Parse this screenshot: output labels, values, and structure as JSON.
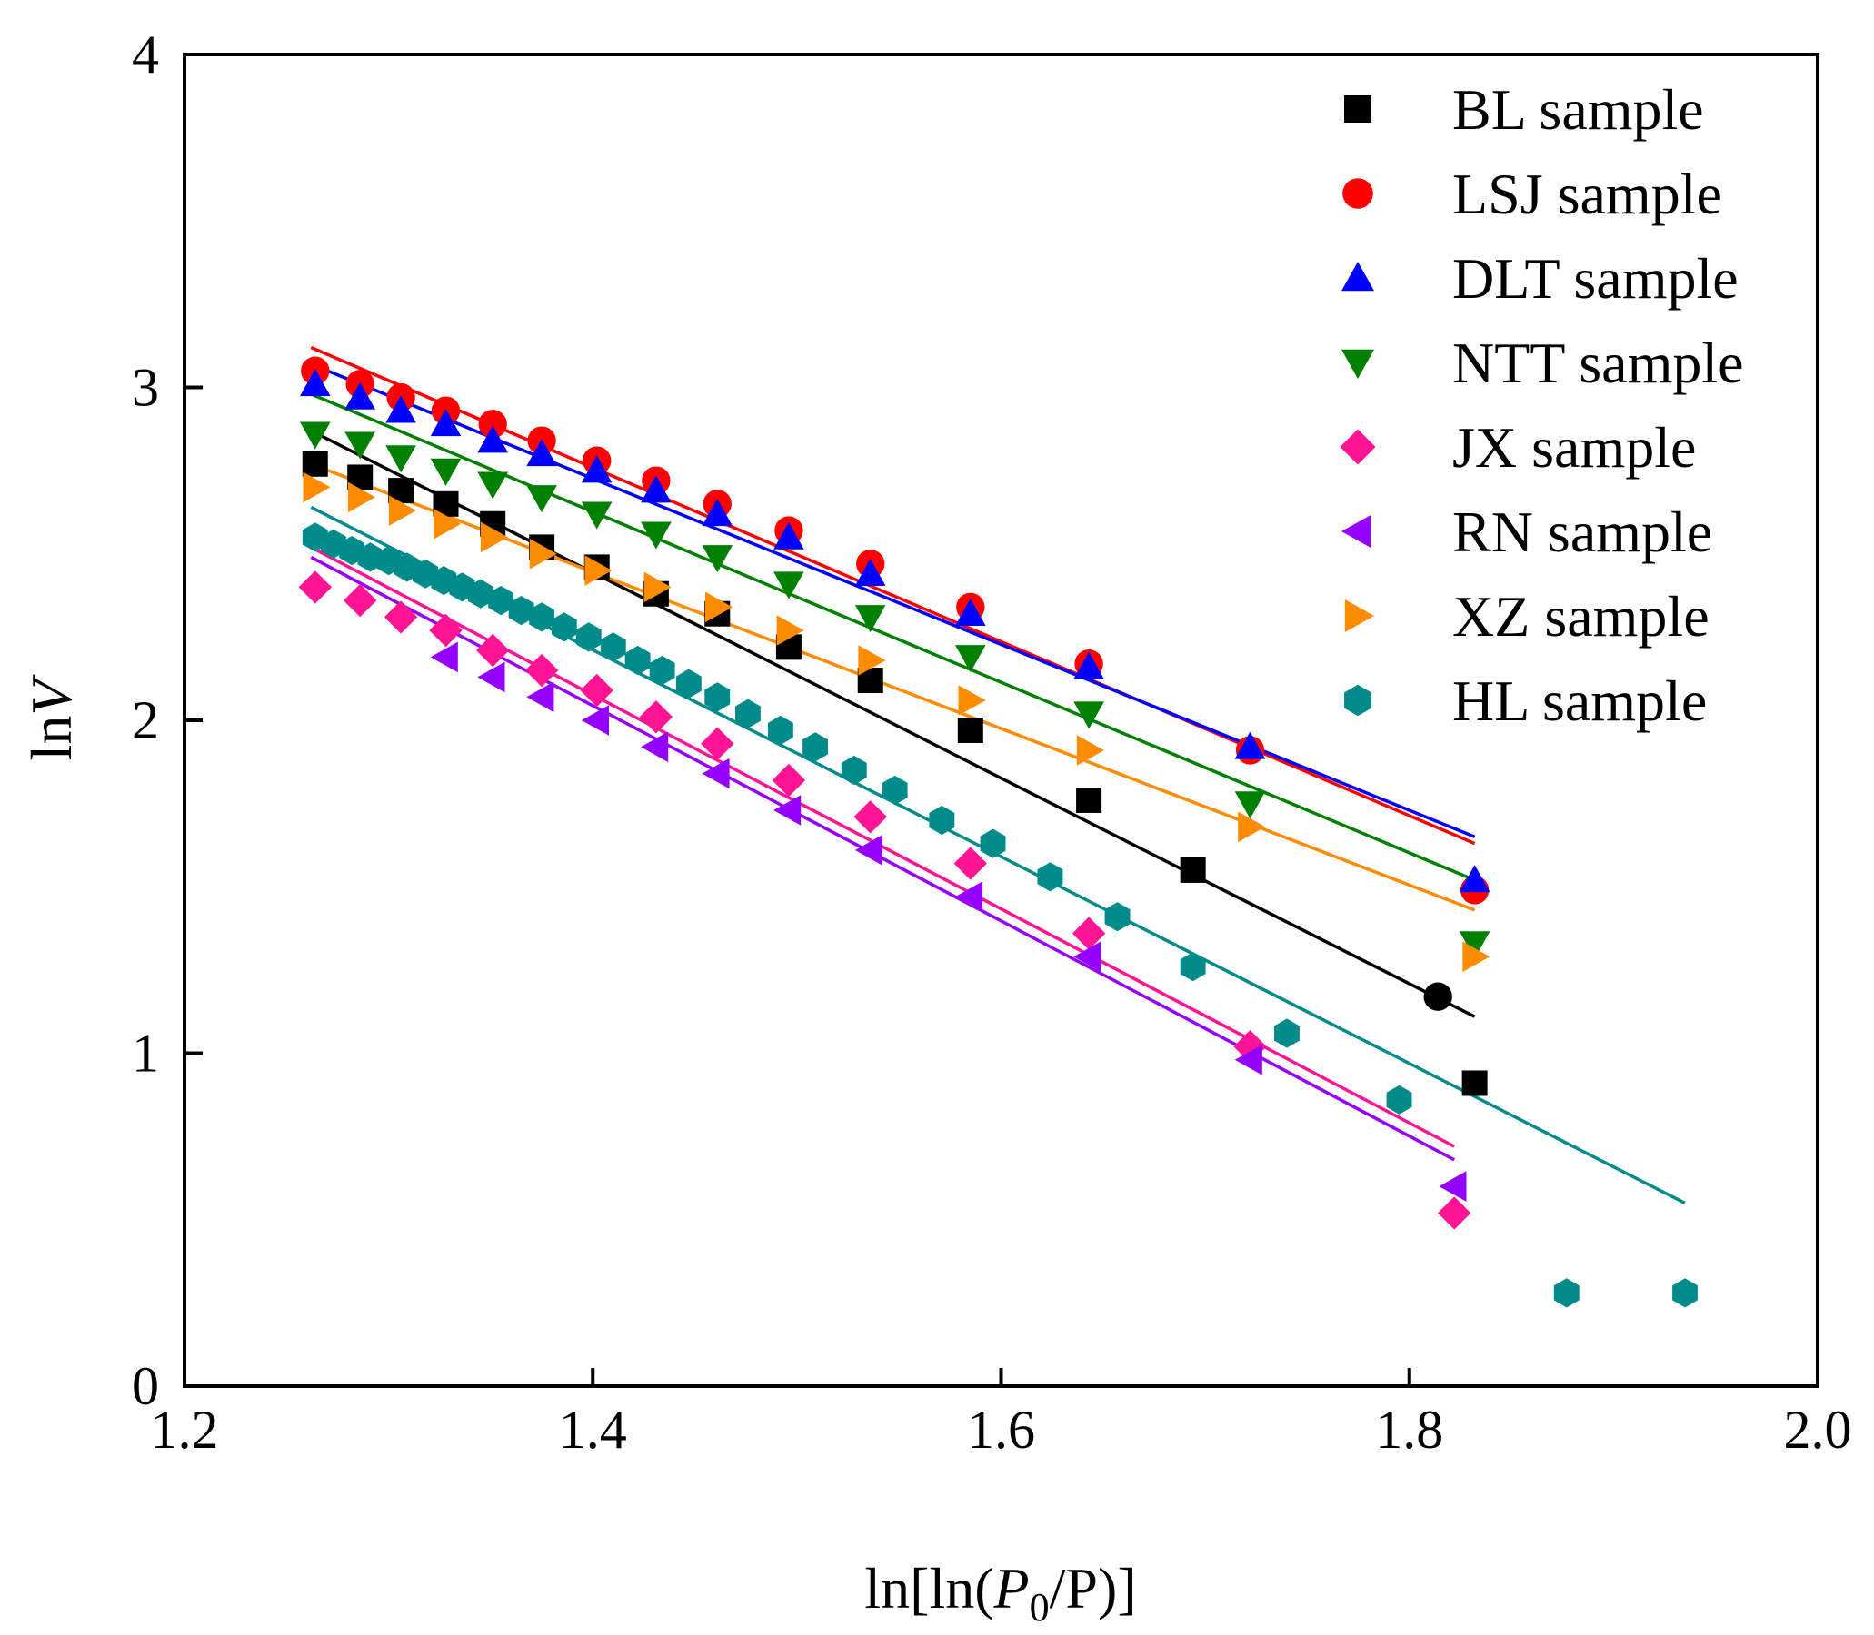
{
  "chart_data": {
    "type": "scatter",
    "title": "",
    "xlabel": "ln[ln(P0/P)]",
    "xlabel_parts": {
      "prefix": "ln[ln(",
      "p": "P",
      "sub": "0",
      "suffix": "/P)]"
    },
    "ylabel": "lnV",
    "ylabel_parts": {
      "prefix": "ln",
      "italic": "V"
    },
    "xlim": [
      1.2,
      2.0
    ],
    "ylim": [
      0,
      4
    ],
    "xticks": [
      1.2,
      1.4,
      1.6,
      1.8,
      2.0
    ],
    "xtick_labels": [
      "1.2",
      "1.4",
      "1.6",
      "1.8",
      "2.0"
    ],
    "yticks": [
      0,
      1,
      2,
      3,
      4
    ],
    "ytick_labels": [
      "0",
      "1",
      "2",
      "3",
      "4"
    ],
    "grid": false,
    "legend_position": "top-right",
    "series": [
      {
        "name": "BL sample",
        "color": "#000000",
        "marker": "square",
        "x": [
          1.264,
          1.286,
          1.306,
          1.328,
          1.351,
          1.375,
          1.402,
          1.431,
          1.461,
          1.496,
          1.536,
          1.585,
          1.643,
          1.694,
          1.832
        ],
        "y": [
          2.77,
          2.73,
          2.69,
          2.65,
          2.59,
          2.52,
          2.46,
          2.38,
          2.32,
          2.22,
          2.12,
          1.97,
          1.76,
          1.55,
          0.91
        ],
        "fit": {
          "x": [
            1.262,
            1.832
          ],
          "y": [
            2.87,
            1.11
          ]
        }
      },
      {
        "name": "LSJ sample",
        "color": "#ff0000",
        "marker": "circle",
        "x": [
          1.264,
          1.286,
          1.306,
          1.328,
          1.351,
          1.375,
          1.402,
          1.431,
          1.461,
          1.496,
          1.536,
          1.585,
          1.643,
          1.722,
          1.832
        ],
        "y": [
          3.05,
          3.01,
          2.97,
          2.93,
          2.89,
          2.84,
          2.78,
          2.72,
          2.65,
          2.57,
          2.47,
          2.34,
          2.17,
          1.91,
          1.49
        ],
        "fit": {
          "x": [
            1.262,
            1.832
          ],
          "y": [
            3.12,
            1.63
          ]
        }
      },
      {
        "name": "DLT sample",
        "color": "#0000ff",
        "marker": "triangle-up",
        "x": [
          1.264,
          1.286,
          1.306,
          1.328,
          1.351,
          1.375,
          1.402,
          1.431,
          1.461,
          1.496,
          1.536,
          1.585,
          1.643,
          1.722,
          1.832
        ],
        "y": [
          3.01,
          2.97,
          2.93,
          2.89,
          2.84,
          2.8,
          2.75,
          2.69,
          2.62,
          2.55,
          2.44,
          2.32,
          2.16,
          1.92,
          1.52
        ],
        "fit": {
          "x": [
            1.262,
            1.832
          ],
          "y": [
            3.07,
            1.65
          ]
        }
      },
      {
        "name": "NTT sample",
        "color": "#008000",
        "marker": "triangle-down",
        "x": [
          1.264,
          1.286,
          1.306,
          1.328,
          1.351,
          1.375,
          1.402,
          1.431,
          1.461,
          1.496,
          1.536,
          1.585,
          1.643,
          1.722,
          1.832
        ],
        "y": [
          2.86,
          2.83,
          2.79,
          2.75,
          2.71,
          2.67,
          2.62,
          2.56,
          2.49,
          2.41,
          2.31,
          2.19,
          2.02,
          1.75,
          1.33
        ],
        "fit": {
          "x": [
            1.262,
            1.832
          ],
          "y": [
            2.98,
            1.52
          ]
        }
      },
      {
        "name": "JX sample",
        "color": "#ff1493",
        "marker": "diamond",
        "x": [
          1.264,
          1.286,
          1.306,
          1.328,
          1.351,
          1.375,
          1.402,
          1.431,
          1.461,
          1.496,
          1.536,
          1.585,
          1.643,
          1.722,
          1.822
        ],
        "y": [
          2.4,
          2.36,
          2.31,
          2.27,
          2.21,
          2.15,
          2.09,
          2.01,
          1.93,
          1.82,
          1.71,
          1.57,
          1.36,
          1.02,
          0.52
        ],
        "fit": {
          "x": [
            1.262,
            1.822
          ],
          "y": [
            2.52,
            0.72
          ]
        }
      },
      {
        "name": "RN sample",
        "color": "#9400ff",
        "marker": "triangle-left",
        "x": [
          1.328,
          1.351,
          1.375,
          1.402,
          1.431,
          1.461,
          1.496,
          1.536,
          1.585,
          1.643,
          1.722,
          1.822
        ],
        "y": [
          2.19,
          2.13,
          2.07,
          2.0,
          1.92,
          1.84,
          1.73,
          1.61,
          1.47,
          1.29,
          0.98,
          0.6
        ],
        "fit": {
          "x": [
            1.262,
            1.822
          ],
          "y": [
            2.49,
            0.68
          ]
        }
      },
      {
        "name": "XZ sample",
        "color": "#ff8c00",
        "marker": "triangle-right",
        "x": [
          1.264,
          1.286,
          1.306,
          1.328,
          1.351,
          1.375,
          1.402,
          1.431,
          1.461,
          1.496,
          1.536,
          1.585,
          1.643,
          1.722,
          1.832
        ],
        "y": [
          2.7,
          2.67,
          2.63,
          2.59,
          2.55,
          2.5,
          2.45,
          2.4,
          2.34,
          2.27,
          2.18,
          2.06,
          1.91,
          1.68,
          1.29
        ],
        "fit": {
          "x": [
            1.262,
            1.832
          ],
          "y": [
            2.77,
            1.43
          ]
        }
      },
      {
        "name": "HL sample",
        "color": "#008b8b",
        "marker": "hexagon",
        "x": [
          1.264,
          1.273,
          1.282,
          1.291,
          1.3,
          1.309,
          1.318,
          1.327,
          1.336,
          1.345,
          1.355,
          1.365,
          1.375,
          1.386,
          1.398,
          1.41,
          1.422,
          1.434,
          1.447,
          1.461,
          1.476,
          1.492,
          1.509,
          1.528,
          1.548,
          1.571,
          1.596,
          1.624,
          1.657,
          1.694,
          1.74,
          1.795,
          1.877,
          1.935
        ],
        "y": [
          2.55,
          2.53,
          2.51,
          2.49,
          2.48,
          2.46,
          2.44,
          2.42,
          2.4,
          2.38,
          2.36,
          2.33,
          2.31,
          2.28,
          2.25,
          2.22,
          2.18,
          2.15,
          2.11,
          2.07,
          2.02,
          1.97,
          1.92,
          1.85,
          1.79,
          1.7,
          1.63,
          1.53,
          1.41,
          1.26,
          1.06,
          0.86,
          0.28,
          0.28
        ],
        "fit": {
          "x": [
            1.262,
            1.935
          ],
          "y": [
            2.64,
            0.55
          ]
        }
      }
    ],
    "extra_markers": [
      {
        "label": "BL black circle",
        "color": "#000000",
        "marker": "circle",
        "x": 1.814,
        "y": 1.17
      }
    ]
  }
}
